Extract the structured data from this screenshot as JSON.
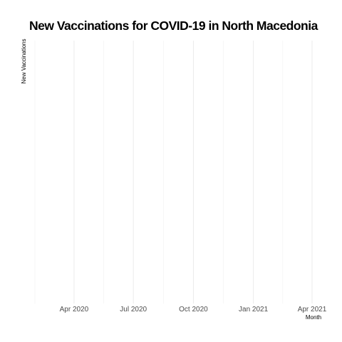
{
  "chart_data": {
    "type": "line",
    "title": "New Vaccinations for COVID-19 in North Macedonia",
    "xlabel": "Month",
    "ylabel": "New Vaccinations",
    "x_axis_type": "date",
    "xlim": [
      "2020-02-01",
      "2021-04-01"
    ],
    "x_ticks": [
      {
        "date": "2020-04-01",
        "label": "Apr 2020"
      },
      {
        "date": "2020-07-01",
        "label": "Jul 2020"
      },
      {
        "date": "2020-10-01",
        "label": "Oct 2020"
      },
      {
        "date": "2021-01-01",
        "label": "Jan 2021"
      },
      {
        "date": "2021-04-01",
        "label": "Apr 2021"
      }
    ],
    "series": [],
    "grid": true,
    "legend": "none"
  }
}
